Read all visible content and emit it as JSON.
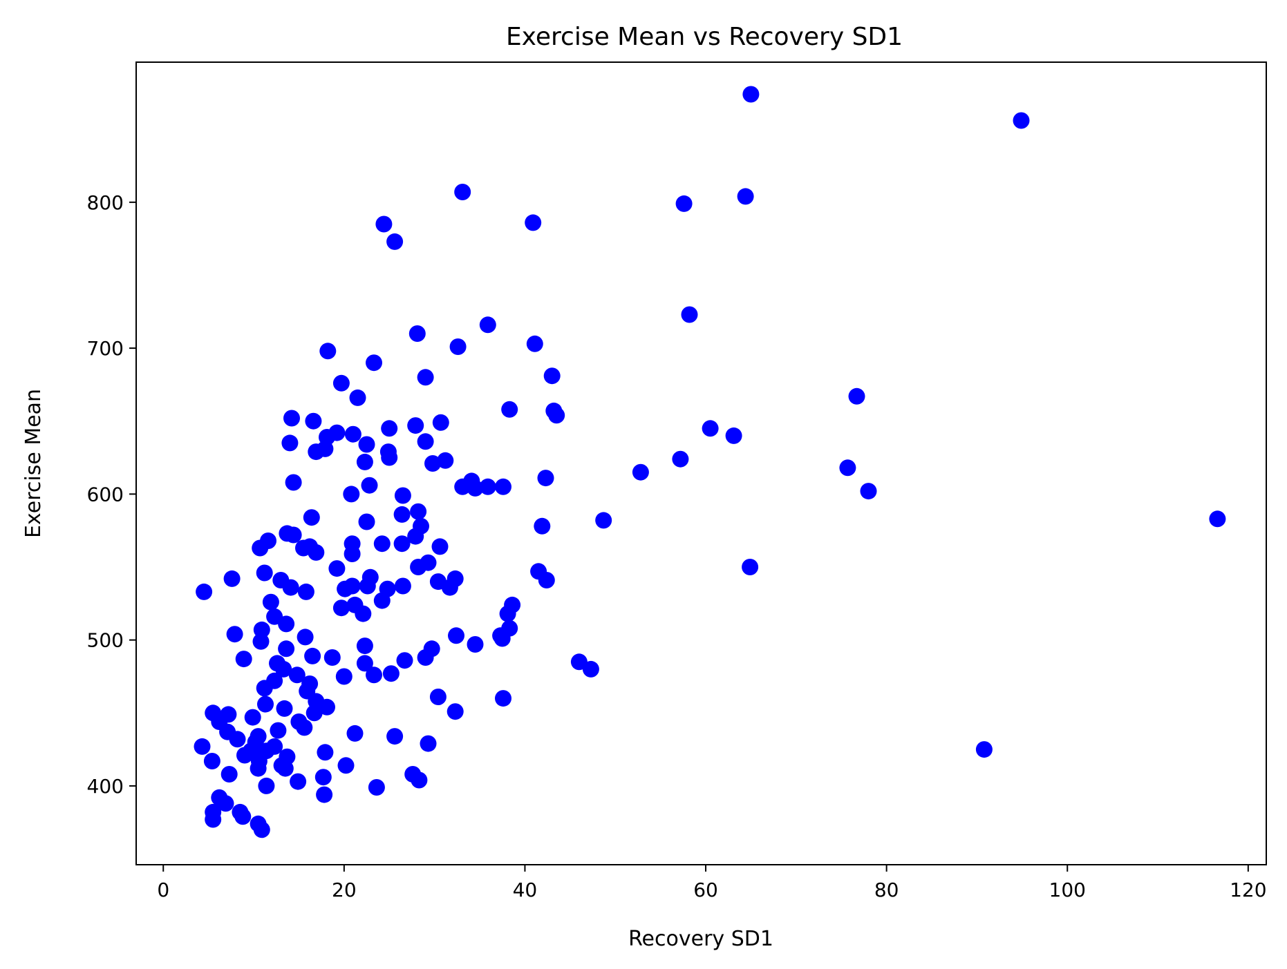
{
  "chart_data": {
    "type": "scatter",
    "title": "Exercise Mean vs Recovery SD1",
    "xlabel": "Recovery SD1",
    "ylabel": "Exercise Mean",
    "xlim": [
      -3,
      122
    ],
    "ylim": [
      346,
      896
    ],
    "x_ticks": [
      0,
      20,
      40,
      60,
      80,
      100,
      120
    ],
    "y_ticks": [
      400,
      500,
      600,
      700,
      800
    ],
    "grid": false,
    "marker_color": "#0000ff",
    "points": [
      [
        65.0,
        874
      ],
      [
        94.9,
        856
      ],
      [
        33.1,
        807
      ],
      [
        64.4,
        804
      ],
      [
        57.6,
        799
      ],
      [
        24.4,
        785
      ],
      [
        40.9,
        786
      ],
      [
        25.6,
        773
      ],
      [
        58.2,
        723
      ],
      [
        35.9,
        716
      ],
      [
        28.1,
        710
      ],
      [
        41.1,
        703
      ],
      [
        32.6,
        701
      ],
      [
        18.2,
        698
      ],
      [
        23.3,
        690
      ],
      [
        43.0,
        681
      ],
      [
        29.0,
        680
      ],
      [
        19.7,
        676
      ],
      [
        21.5,
        666
      ],
      [
        76.7,
        667
      ],
      [
        38.3,
        658
      ],
      [
        43.2,
        657
      ],
      [
        43.5,
        654
      ],
      [
        14.2,
        652
      ],
      [
        16.6,
        650
      ],
      [
        30.7,
        649
      ],
      [
        27.9,
        647
      ],
      [
        25.0,
        645
      ],
      [
        60.5,
        645
      ],
      [
        19.2,
        642
      ],
      [
        21.0,
        641
      ],
      [
        63.1,
        640
      ],
      [
        18.1,
        639
      ],
      [
        29.0,
        636
      ],
      [
        14.0,
        635
      ],
      [
        22.5,
        634
      ],
      [
        17.9,
        631
      ],
      [
        24.9,
        629
      ],
      [
        16.9,
        629
      ],
      [
        25.0,
        625
      ],
      [
        57.2,
        624
      ],
      [
        31.2,
        623
      ],
      [
        22.3,
        622
      ],
      [
        29.8,
        621
      ],
      [
        75.7,
        618
      ],
      [
        52.8,
        615
      ],
      [
        42.3,
        611
      ],
      [
        34.1,
        609
      ],
      [
        14.4,
        608
      ],
      [
        22.8,
        606
      ],
      [
        33.1,
        605
      ],
      [
        34.5,
        604
      ],
      [
        37.6,
        605
      ],
      [
        78.0,
        602
      ],
      [
        35.9,
        605
      ],
      [
        20.8,
        600
      ],
      [
        26.5,
        599
      ],
      [
        28.2,
        588
      ],
      [
        26.4,
        586
      ],
      [
        16.4,
        584
      ],
      [
        116.6,
        583
      ],
      [
        48.7,
        582
      ],
      [
        22.5,
        581
      ],
      [
        28.5,
        578
      ],
      [
        41.9,
        578
      ],
      [
        13.7,
        573
      ],
      [
        14.4,
        572
      ],
      [
        27.9,
        571
      ],
      [
        10.7,
        563
      ],
      [
        11.6,
        568
      ],
      [
        15.5,
        563
      ],
      [
        20.9,
        566
      ],
      [
        24.2,
        566
      ],
      [
        30.6,
        564
      ],
      [
        26.4,
        566
      ],
      [
        16.2,
        564
      ],
      [
        16.9,
        560
      ],
      [
        20.9,
        559
      ],
      [
        19.2,
        549
      ],
      [
        28.2,
        550
      ],
      [
        29.3,
        553
      ],
      [
        41.5,
        547
      ],
      [
        64.9,
        550
      ],
      [
        11.2,
        546
      ],
      [
        42.4,
        541
      ],
      [
        22.9,
        543
      ],
      [
        32.3,
        542
      ],
      [
        7.6,
        542
      ],
      [
        30.4,
        540
      ],
      [
        13.0,
        541
      ],
      [
        24.8,
        535
      ],
      [
        26.5,
        537
      ],
      [
        14.1,
        536
      ],
      [
        15.8,
        533
      ],
      [
        4.5,
        533
      ],
      [
        20.1,
        535
      ],
      [
        20.9,
        537
      ],
      [
        22.6,
        537
      ],
      [
        31.7,
        536
      ],
      [
        24.2,
        527
      ],
      [
        11.9,
        526
      ],
      [
        21.2,
        524
      ],
      [
        38.6,
        524
      ],
      [
        19.7,
        522
      ],
      [
        22.1,
        518
      ],
      [
        38.1,
        518
      ],
      [
        12.3,
        516
      ],
      [
        13.6,
        511
      ],
      [
        38.3,
        508
      ],
      [
        10.9,
        507
      ],
      [
        7.9,
        504
      ],
      [
        32.4,
        503
      ],
      [
        37.3,
        503
      ],
      [
        34.5,
        497
      ],
      [
        15.7,
        502
      ],
      [
        10.8,
        499
      ],
      [
        37.5,
        501
      ],
      [
        22.3,
        496
      ],
      [
        29.7,
        494
      ],
      [
        13.6,
        494
      ],
      [
        8.9,
        487
      ],
      [
        16.5,
        489
      ],
      [
        18.7,
        488
      ],
      [
        29.0,
        488
      ],
      [
        26.7,
        486
      ],
      [
        12.6,
        484
      ],
      [
        22.3,
        484
      ],
      [
        46.0,
        485
      ],
      [
        47.3,
        480
      ],
      [
        25.2,
        477
      ],
      [
        23.3,
        476
      ],
      [
        13.3,
        480
      ],
      [
        14.8,
        476
      ],
      [
        20.0,
        475
      ],
      [
        12.3,
        472
      ],
      [
        16.2,
        470
      ],
      [
        11.2,
        467
      ],
      [
        15.9,
        465
      ],
      [
        30.4,
        461
      ],
      [
        37.6,
        460
      ],
      [
        16.9,
        458
      ],
      [
        11.3,
        456
      ],
      [
        13.4,
        453
      ],
      [
        18.1,
        454
      ],
      [
        16.7,
        450
      ],
      [
        5.5,
        450
      ],
      [
        32.3,
        451
      ],
      [
        7.2,
        449
      ],
      [
        9.9,
        447
      ],
      [
        15.0,
        444
      ],
      [
        6.2,
        444
      ],
      [
        15.6,
        440
      ],
      [
        12.7,
        438
      ],
      [
        7.1,
        437
      ],
      [
        21.2,
        436
      ],
      [
        25.6,
        434
      ],
      [
        10.5,
        434
      ],
      [
        8.2,
        432
      ],
      [
        10.2,
        430
      ],
      [
        29.3,
        429
      ],
      [
        12.3,
        427
      ],
      [
        4.3,
        427
      ],
      [
        90.8,
        425
      ],
      [
        9.7,
        424
      ],
      [
        17.9,
        423
      ],
      [
        11.4,
        424
      ],
      [
        9.0,
        421
      ],
      [
        13.7,
        420
      ],
      [
        10.6,
        417
      ],
      [
        5.4,
        417
      ],
      [
        20.2,
        414
      ],
      [
        10.5,
        412
      ],
      [
        13.1,
        414
      ],
      [
        13.5,
        412
      ],
      [
        7.3,
        408
      ],
      [
        27.6,
        408
      ],
      [
        28.3,
        404
      ],
      [
        14.9,
        403
      ],
      [
        17.7,
        406
      ],
      [
        11.4,
        400
      ],
      [
        23.6,
        399
      ],
      [
        17.8,
        394
      ],
      [
        6.2,
        392
      ],
      [
        6.9,
        388
      ],
      [
        8.5,
        382
      ],
      [
        5.5,
        382
      ],
      [
        8.8,
        379
      ],
      [
        5.5,
        377
      ],
      [
        10.5,
        374
      ],
      [
        10.9,
        370
      ]
    ]
  }
}
